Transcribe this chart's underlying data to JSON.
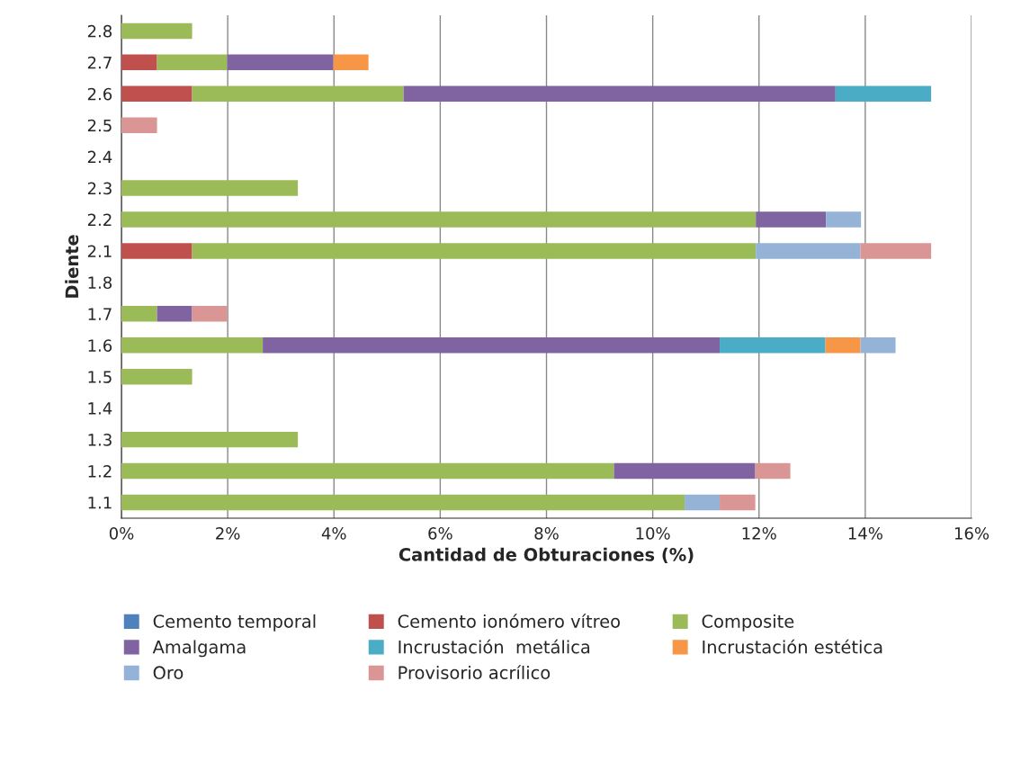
{
  "chart_data": {
    "type": "bar",
    "orientation": "horizontal",
    "stacked": true,
    "xlabel": "Cantidad de Obturaciones (%)",
    "ylabel": "Diente",
    "categories": [
      "2.8",
      "2.7",
      "2.6",
      "2.5",
      "2.4",
      "2.3",
      "2.2",
      "2.1",
      "1.8",
      "1.7",
      "1.6",
      "1.5",
      "1.4",
      "1.3",
      "1.2",
      "1.1"
    ],
    "xlim": [
      0,
      16
    ],
    "xticks": [
      {
        "value": 0,
        "label": "0%"
      },
      {
        "value": 2,
        "label": "2%"
      },
      {
        "value": 4,
        "label": "4%"
      },
      {
        "value": 6,
        "label": "6%"
      },
      {
        "value": 8,
        "label": "8%"
      },
      {
        "value": 10,
        "label": "10%"
      },
      {
        "value": 12,
        "label": "12%"
      },
      {
        "value": 14,
        "label": "14%"
      },
      {
        "value": 16,
        "label": "16%"
      }
    ],
    "grid": "x",
    "legend": "bottom",
    "series": [
      {
        "name": "Cemento temporal",
        "color": "#4f81bd",
        "values": [
          null,
          null,
          null,
          null,
          null,
          null,
          null,
          null,
          null,
          null,
          null,
          null,
          null,
          null,
          null,
          null
        ]
      },
      {
        "name": "Cemento ionómero vítreo",
        "color": "#c0504d",
        "values": [
          null,
          0.67,
          1.33,
          null,
          null,
          null,
          null,
          1.33,
          null,
          null,
          null,
          null,
          null,
          null,
          null,
          null
        ]
      },
      {
        "name": "Composite",
        "color": "#9bbb59",
        "values": [
          1.33,
          1.32,
          3.98,
          null,
          null,
          3.32,
          11.94,
          10.61,
          null,
          0.67,
          2.66,
          1.33,
          null,
          3.32,
          9.27,
          10.6
        ]
      },
      {
        "name": "Amalgama",
        "color": "#8064a2",
        "values": [
          null,
          2.0,
          8.13,
          null,
          null,
          null,
          1.32,
          null,
          null,
          0.66,
          8.6,
          null,
          null,
          null,
          2.66,
          null
        ]
      },
      {
        "name": "Incrustación  metálica",
        "color": "#4bacc6",
        "values": [
          null,
          null,
          1.8,
          null,
          null,
          null,
          null,
          null,
          null,
          null,
          1.99,
          null,
          null,
          null,
          null,
          null
        ]
      },
      {
        "name": "Incrustación estética",
        "color": "#f79646",
        "values": [
          null,
          0.66,
          null,
          null,
          null,
          null,
          null,
          null,
          null,
          null,
          0.66,
          null,
          null,
          null,
          null,
          null
        ]
      },
      {
        "name": "Oro",
        "color": "#95b3d7",
        "values": [
          null,
          null,
          null,
          null,
          null,
          null,
          0.66,
          1.97,
          null,
          null,
          0.66,
          null,
          null,
          null,
          null,
          0.66
        ]
      },
      {
        "name": "Provisorio acrílico",
        "color": "#d99694",
        "values": [
          null,
          null,
          null,
          0.67,
          null,
          null,
          null,
          1.33,
          null,
          0.66,
          null,
          null,
          null,
          null,
          0.66,
          0.67
        ]
      }
    ]
  }
}
